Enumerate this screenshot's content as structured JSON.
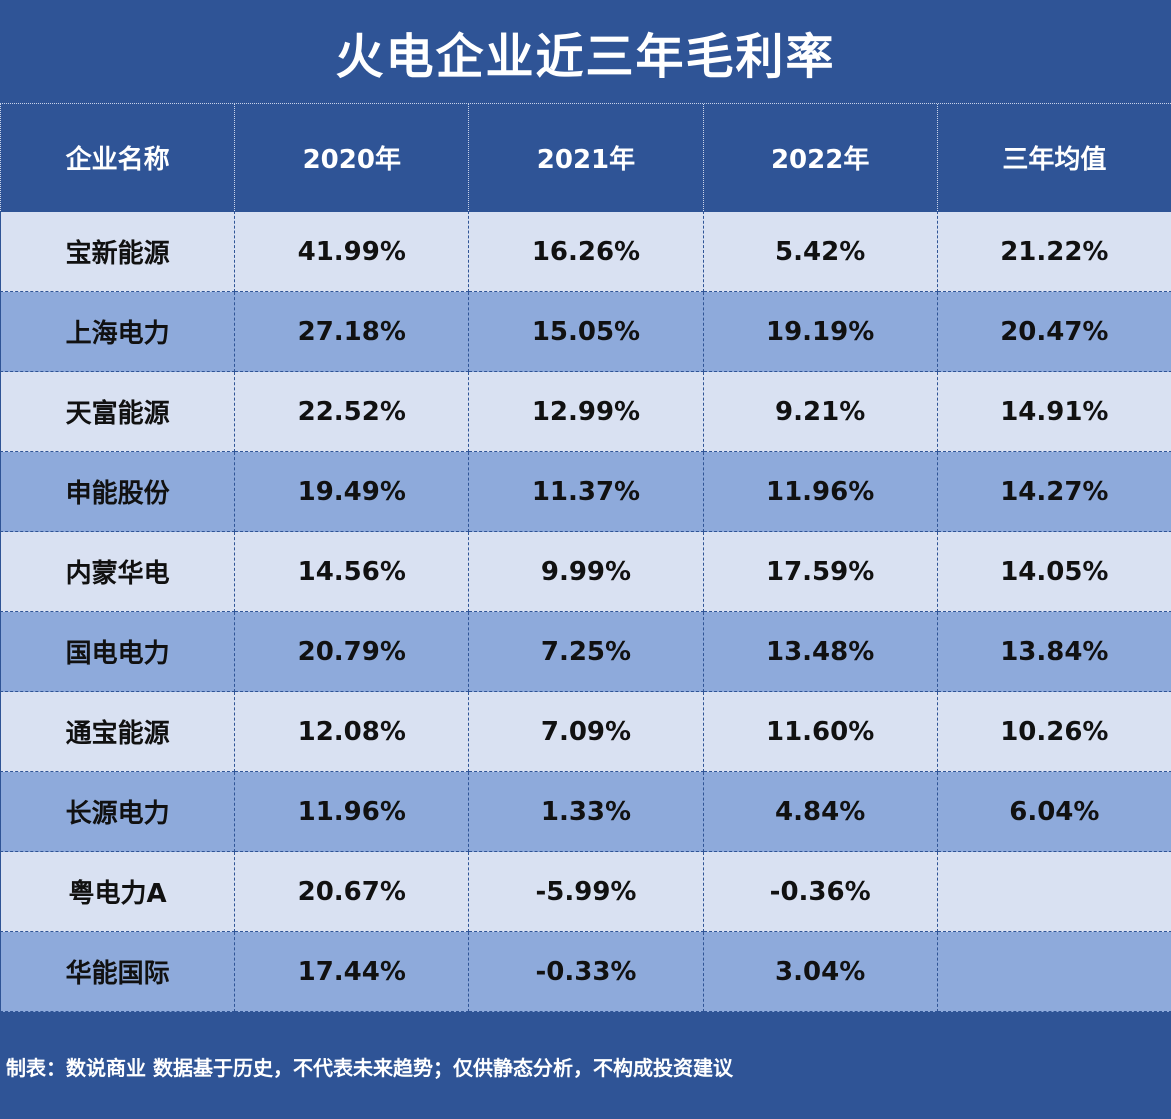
{
  "title": "火电企业近三年毛利率",
  "headers": [
    "企业名称",
    "2020年",
    "2021年",
    "2022年",
    "三年均值"
  ],
  "rows": [
    {
      "name": "宝新能源",
      "y2020": "41.99%",
      "y2021": "16.26%",
      "y2022": "5.42%",
      "avg": "21.22%"
    },
    {
      "name": "上海电力",
      "y2020": "27.18%",
      "y2021": "15.05%",
      "y2022": "19.19%",
      "avg": "20.47%"
    },
    {
      "name": "天富能源",
      "y2020": "22.52%",
      "y2021": "12.99%",
      "y2022": "9.21%",
      "avg": "14.91%"
    },
    {
      "name": "申能股份",
      "y2020": "19.49%",
      "y2021": "11.37%",
      "y2022": "11.96%",
      "avg": "14.27%"
    },
    {
      "name": "内蒙华电",
      "y2020": "14.56%",
      "y2021": "9.99%",
      "y2022": "17.59%",
      "avg": "14.05%"
    },
    {
      "name": "国电电力",
      "y2020": "20.79%",
      "y2021": "7.25%",
      "y2022": "13.48%",
      "avg": "13.84%"
    },
    {
      "name": "通宝能源",
      "y2020": "12.08%",
      "y2021": "7.09%",
      "y2022": "11.60%",
      "avg": "10.26%"
    },
    {
      "name": "长源电力",
      "y2020": "11.96%",
      "y2021": "1.33%",
      "y2022": "4.84%",
      "avg": "6.04%"
    },
    {
      "name": "粤电力A",
      "y2020": "20.67%",
      "y2021": "-5.99%",
      "y2022": "-0.36%",
      "avg": ""
    },
    {
      "name": "华能国际",
      "y2020": "17.44%",
      "y2021": "-0.33%",
      "y2022": "3.04%",
      "avg": ""
    }
  ],
  "footer": "制表：数说商业 数据基于历史，不代表未来趋势；仅供静态分析，不构成投资建议",
  "colors": {
    "header_bg": "#2f5496",
    "row_light": "#d9e1f2",
    "row_dark": "#8eaadb"
  }
}
